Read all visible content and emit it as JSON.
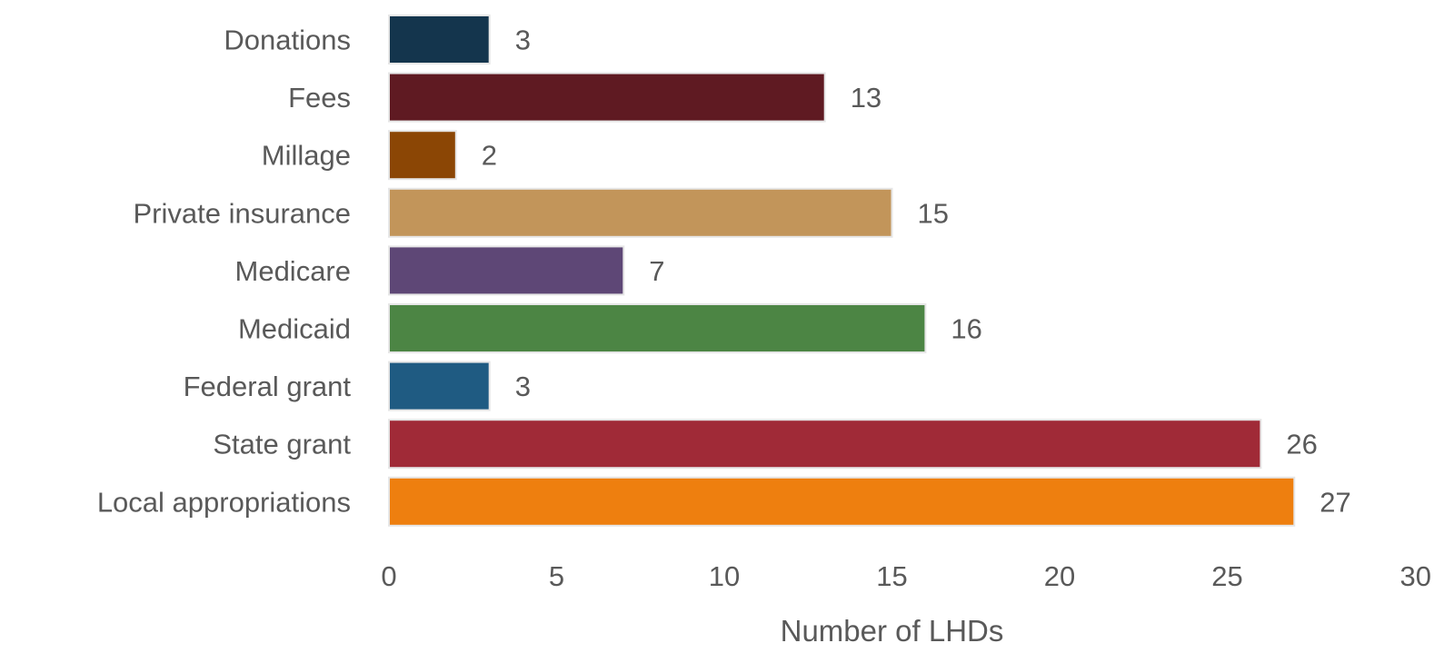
{
  "chart_data": {
    "type": "bar",
    "orientation": "horizontal",
    "categories": [
      "Donations",
      "Fees",
      "Millage",
      "Private insurance",
      "Medicare",
      "Medicaid",
      "Federal grant",
      "State grant",
      "Local appropriations"
    ],
    "values": [
      3,
      13,
      2,
      15,
      7,
      16,
      3,
      26,
      27
    ],
    "colors": [
      "#14354d",
      "#5f1a22",
      "#8b4605",
      "#c2955a",
      "#5e4776",
      "#4c8544",
      "#1f5b82",
      "#a02a37",
      "#ee7f0f"
    ],
    "title": "",
    "xlabel": "Number of LHDs",
    "ylabel": "",
    "xlim": [
      0,
      30
    ],
    "xticks": [
      "0",
      "5",
      "10",
      "15",
      "20",
      "25",
      "30"
    ],
    "grid": false,
    "legend": "none",
    "data_labels": true
  }
}
